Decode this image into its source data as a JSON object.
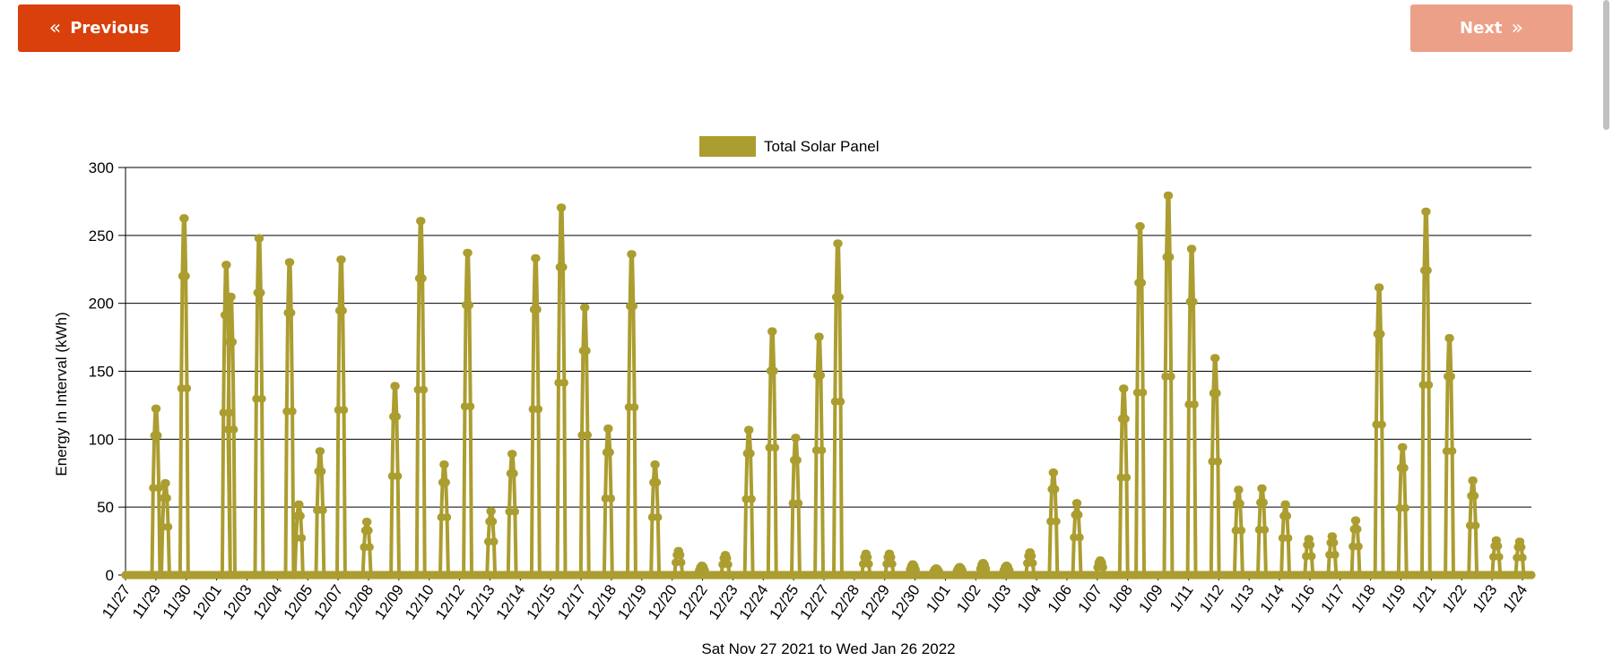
{
  "nav": {
    "previous_label": "Previous",
    "previous_icon": "double-chevron-left",
    "next_label": "Next",
    "next_icon": "double-chevron-right",
    "previous_color": "#d9400b",
    "next_color": "#eda088"
  },
  "chart_data": {
    "type": "line",
    "title": "",
    "xlabel": "Sat Nov 27 2021 to Wed Jan 26 2022",
    "ylabel": "Energy In Interval (kWh)",
    "ylim": [
      0,
      300
    ],
    "yticks": [
      0,
      50,
      100,
      150,
      200,
      250,
      300
    ],
    "grid": true,
    "legend_position": "top-center",
    "series": [
      {
        "name": "Total Solar Panel",
        "color": "#ab9d30",
        "peaks": [
          {
            "x": 1.3,
            "y": 125
          },
          {
            "x": 1.7,
            "y": 69
          },
          {
            "x": 2.5,
            "y": 268
          },
          {
            "x": 4.3,
            "y": 233
          },
          {
            "x": 4.5,
            "y": 209
          },
          {
            "x": 5.7,
            "y": 253
          },
          {
            "x": 7.0,
            "y": 235
          },
          {
            "x": 7.4,
            "y": 53
          },
          {
            "x": 8.3,
            "y": 93
          },
          {
            "x": 9.2,
            "y": 237
          },
          {
            "x": 10.3,
            "y": 40
          },
          {
            "x": 11.5,
            "y": 142
          },
          {
            "x": 12.6,
            "y": 266
          },
          {
            "x": 13.6,
            "y": 83
          },
          {
            "x": 14.6,
            "y": 242
          },
          {
            "x": 15.6,
            "y": 48
          },
          {
            "x": 16.5,
            "y": 91
          },
          {
            "x": 17.5,
            "y": 238
          },
          {
            "x": 18.6,
            "y": 276
          },
          {
            "x": 19.6,
            "y": 201
          },
          {
            "x": 20.6,
            "y": 110
          },
          {
            "x": 21.6,
            "y": 241
          },
          {
            "x": 22.6,
            "y": 83
          },
          {
            "x": 23.6,
            "y": 18
          },
          {
            "x": 24.6,
            "y": 7
          },
          {
            "x": 25.6,
            "y": 15
          },
          {
            "x": 26.6,
            "y": 109
          },
          {
            "x": 27.6,
            "y": 183
          },
          {
            "x": 28.6,
            "y": 103
          },
          {
            "x": 29.6,
            "y": 179
          },
          {
            "x": 30.4,
            "y": 249
          },
          {
            "x": 31.6,
            "y": 16
          },
          {
            "x": 32.6,
            "y": 16
          },
          {
            "x": 33.6,
            "y": 8
          },
          {
            "x": 34.6,
            "y": 5
          },
          {
            "x": 35.6,
            "y": 6
          },
          {
            "x": 36.6,
            "y": 9
          },
          {
            "x": 37.6,
            "y": 7
          },
          {
            "x": 38.6,
            "y": 17
          },
          {
            "x": 39.6,
            "y": 77
          },
          {
            "x": 40.6,
            "y": 54
          },
          {
            "x": 41.6,
            "y": 11
          },
          {
            "x": 42.6,
            "y": 140
          },
          {
            "x": 43.3,
            "y": 262
          },
          {
            "x": 44.5,
            "y": 285
          },
          {
            "x": 45.5,
            "y": 245
          },
          {
            "x": 46.5,
            "y": 163
          },
          {
            "x": 47.5,
            "y": 64
          },
          {
            "x": 48.5,
            "y": 65
          },
          {
            "x": 49.5,
            "y": 53
          },
          {
            "x": 50.5,
            "y": 27
          },
          {
            "x": 51.5,
            "y": 29
          },
          {
            "x": 52.5,
            "y": 41
          },
          {
            "x": 53.5,
            "y": 216
          },
          {
            "x": 54.5,
            "y": 96
          },
          {
            "x": 55.5,
            "y": 273
          },
          {
            "x": 56.5,
            "y": 178
          },
          {
            "x": 57.5,
            "y": 71
          },
          {
            "x": 58.5,
            "y": 26
          },
          {
            "x": 59.5,
            "y": 25
          }
        ]
      }
    ],
    "x_tick_labels": [
      "11/27",
      "11/29",
      "11/30",
      "12/01",
      "12/03",
      "12/04",
      "12/05",
      "12/07",
      "12/08",
      "12/09",
      "12/10",
      "12/12",
      "12/13",
      "12/14",
      "12/15",
      "12/17",
      "12/18",
      "12/19",
      "12/20",
      "12/22",
      "12/23",
      "12/24",
      "12/25",
      "12/27",
      "12/28",
      "12/29",
      "12/30",
      "1/01",
      "1/02",
      "1/03",
      "1/04",
      "1/06",
      "1/07",
      "1/08",
      "1/09",
      "1/11",
      "1/12",
      "1/13",
      "1/14",
      "1/16",
      "1/17",
      "1/18",
      "1/19",
      "1/21",
      "1/22",
      "1/23",
      "1/24"
    ]
  }
}
